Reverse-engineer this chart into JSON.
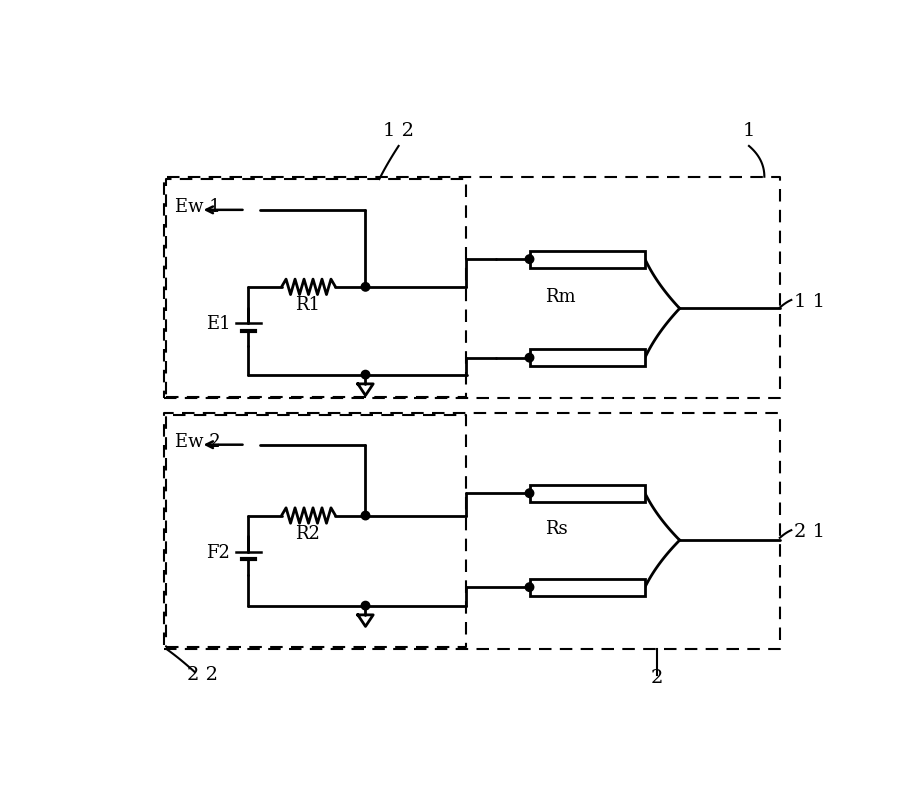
{
  "bg_color": "#ffffff",
  "line_color": "#000000",
  "fig_width": 9.22,
  "fig_height": 7.99,
  "labels": {
    "label_1": "1",
    "label_2": "2",
    "label_12": "1 2",
    "label_22": "2 2",
    "label_Rm": "Rm",
    "label_Rs": "Rs",
    "label_R1": "R1",
    "label_R2": "R2",
    "label_E1": "E1",
    "label_F2": "F2",
    "label_Ew1": "Ew 1",
    "label_Ew2": "Ew 2",
    "label_11": "1 1",
    "label_21": "2 1"
  }
}
